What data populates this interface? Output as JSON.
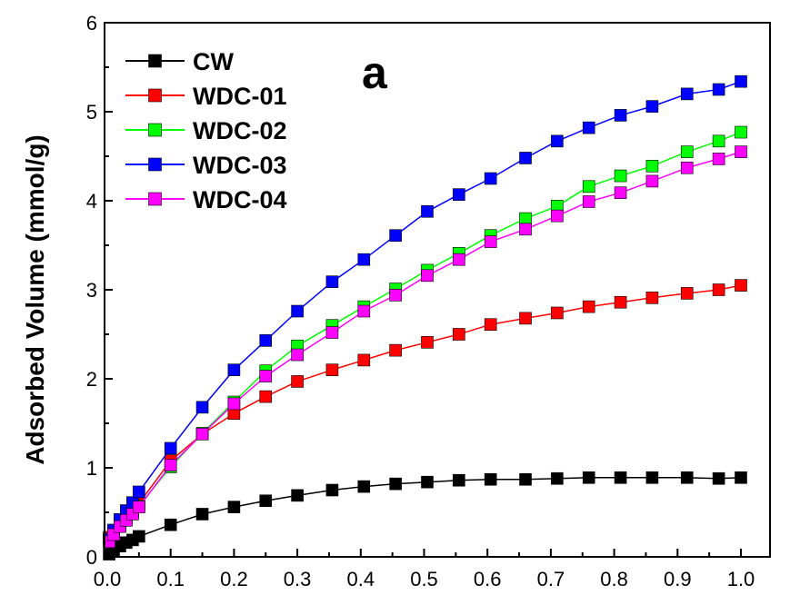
{
  "chart_data": {
    "type": "line",
    "panel_label": "a",
    "title": "",
    "xlabel": "",
    "ylabel": "Adsorbed Volume (mmol/g)",
    "xlim": [
      0.0,
      1.0
    ],
    "ylim": [
      0,
      6
    ],
    "x_ticks": [
      "0.0",
      "0.1",
      "0.2",
      "0.3",
      "0.4",
      "0.5",
      "0.6",
      "0.7",
      "0.8",
      "0.9",
      "1.0"
    ],
    "y_ticks": [
      "0",
      "1",
      "2",
      "3",
      "4",
      "5",
      "6"
    ],
    "grid": false,
    "legend_position": "top-left",
    "marker": "square",
    "x": [
      0.003,
      0.01,
      0.02,
      0.03,
      0.04,
      0.05,
      0.1,
      0.15,
      0.2,
      0.25,
      0.3,
      0.355,
      0.405,
      0.455,
      0.505,
      0.555,
      0.605,
      0.66,
      0.71,
      0.76,
      0.81,
      0.86,
      0.915,
      0.965,
      1.0
    ],
    "series": [
      {
        "name": "CW",
        "color": "#000000",
        "values": [
          0.03,
          0.07,
          0.12,
          0.16,
          0.19,
          0.23,
          0.36,
          0.48,
          0.56,
          0.63,
          0.69,
          0.75,
          0.79,
          0.82,
          0.84,
          0.86,
          0.87,
          0.87,
          0.88,
          0.89,
          0.89,
          0.89,
          0.89,
          0.88,
          0.89
        ]
      },
      {
        "name": "WDC-01",
        "color": "#ff0000",
        "values": [
          0.22,
          0.3,
          0.38,
          0.46,
          0.52,
          0.6,
          1.08,
          1.38,
          1.61,
          1.8,
          1.97,
          2.1,
          2.21,
          2.32,
          2.41,
          2.5,
          2.61,
          2.68,
          2.74,
          2.81,
          2.86,
          2.91,
          2.96,
          3.0,
          3.05
        ]
      },
      {
        "name": "WDC-02",
        "color": "#00ff00",
        "values": [
          0.18,
          0.28,
          0.36,
          0.43,
          0.5,
          0.57,
          1.01,
          1.39,
          1.74,
          2.09,
          2.37,
          2.6,
          2.81,
          3.01,
          3.22,
          3.41,
          3.61,
          3.8,
          3.94,
          4.16,
          4.28,
          4.39,
          4.55,
          4.67,
          4.77
        ]
      },
      {
        "name": "WDC-03",
        "color": "#0000ff",
        "values": [
          0.2,
          0.3,
          0.42,
          0.52,
          0.61,
          0.73,
          1.22,
          1.68,
          2.1,
          2.43,
          2.76,
          3.09,
          3.34,
          3.61,
          3.88,
          4.07,
          4.25,
          4.48,
          4.67,
          4.82,
          4.96,
          5.06,
          5.2,
          5.25,
          5.34
        ]
      },
      {
        "name": "WDC-04",
        "color": "#ff00ff",
        "values": [
          0.17,
          0.25,
          0.34,
          0.41,
          0.48,
          0.56,
          1.03,
          1.38,
          1.72,
          2.03,
          2.27,
          2.52,
          2.76,
          2.94,
          3.16,
          3.34,
          3.54,
          3.68,
          3.83,
          3.99,
          4.09,
          4.22,
          4.37,
          4.47,
          4.55
        ]
      }
    ]
  }
}
